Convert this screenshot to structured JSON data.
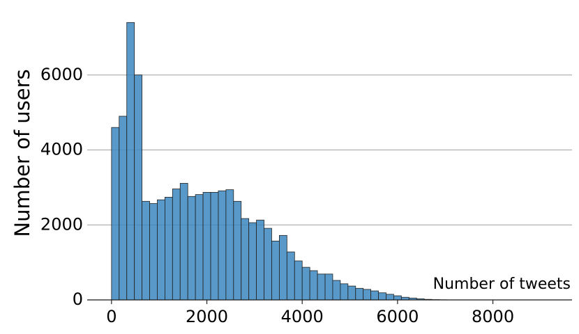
{
  "chart_data": {
    "type": "histogram",
    "xlabel": "Number of tweets",
    "ylabel": "Number of users",
    "bins": [
      0,
      160,
      320,
      480,
      640,
      800,
      960,
      1120,
      1280,
      1440,
      1600,
      1760,
      1920,
      2080,
      2240,
      2400,
      2560,
      2720,
      2880,
      3040,
      3200,
      3360,
      3520,
      3680,
      3840,
      4000,
      4160,
      4320,
      4480,
      4640,
      4800,
      4960,
      5120,
      5280,
      5440,
      5600,
      5760,
      5920,
      6080,
      6240,
      6400,
      6560,
      6720,
      6880,
      7040
    ],
    "counts": [
      4600,
      4900,
      7400,
      6000,
      2630,
      2570,
      2670,
      2740,
      2960,
      3110,
      2760,
      2810,
      2870,
      2870,
      2910,
      2940,
      2630,
      2170,
      2060,
      2130,
      1910,
      1570,
      1720,
      1280,
      1040,
      870,
      780,
      690,
      690,
      520,
      430,
      370,
      310,
      280,
      240,
      190,
      150,
      110,
      70,
      50,
      30,
      15,
      8,
      4
    ],
    "color": "#3b87c0",
    "xlim": [
      -510,
      9660
    ],
    "ylim": [
      0,
      8000
    ],
    "xticks": [
      0,
      2000,
      4000,
      6000,
      8000
    ],
    "yticks": [
      0,
      2000,
      4000,
      6000
    ],
    "grid": true
  }
}
